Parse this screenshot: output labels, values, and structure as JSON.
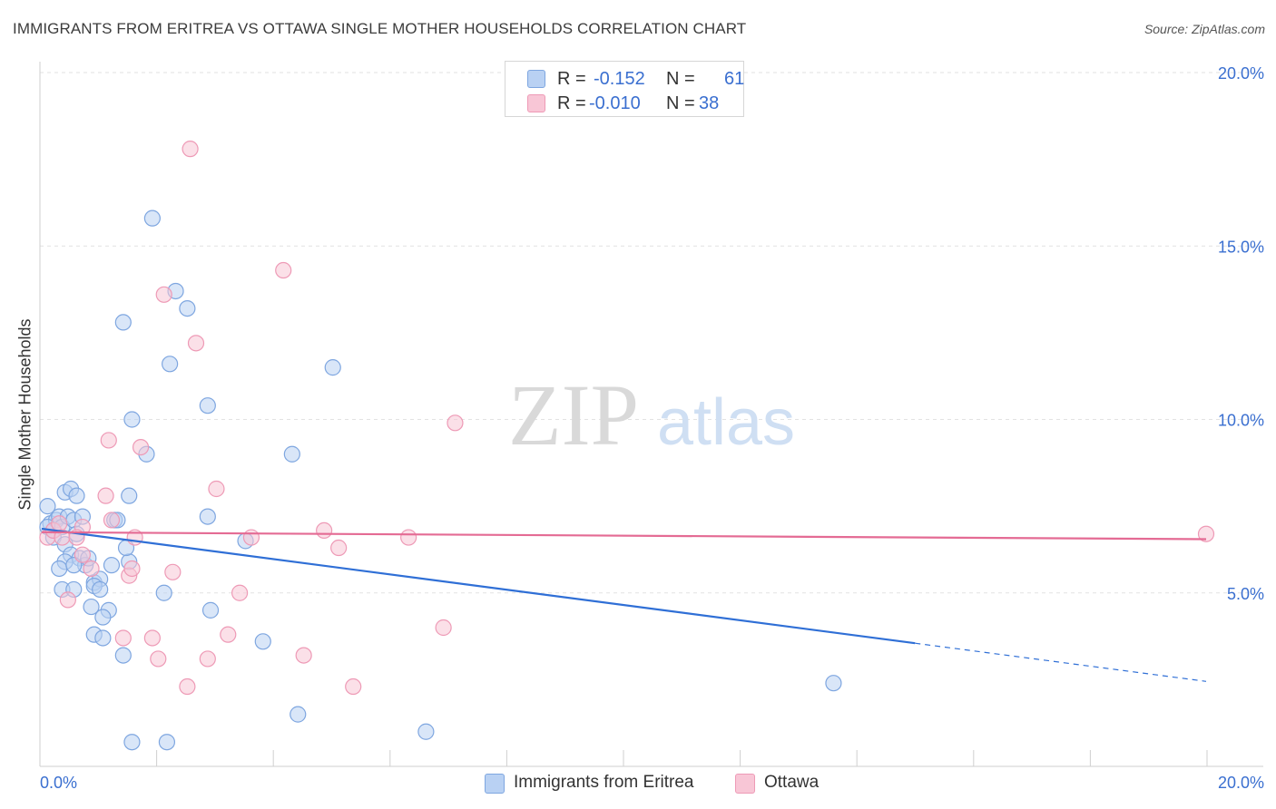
{
  "header": {
    "title": "IMMIGRANTS FROM ERITREA VS OTTAWA SINGLE MOTHER HOUSEHOLDS CORRELATION CHART",
    "source": "Source: ZipAtlas.com"
  },
  "watermark": {
    "zip": "ZIP",
    "atlas": "atlas"
  },
  "legend_top": {
    "rows": [
      {
        "r_label": "R =",
        "r_value": "-0.152",
        "n_label": "N =",
        "n_value": "61"
      },
      {
        "r_label": "R =",
        "r_value": "-0.010",
        "n_label": "N =",
        "n_value": "38"
      }
    ]
  },
  "colors": {
    "series1_fill": "#b9d1f3",
    "series1_stroke": "#7ea6e0",
    "series1_line": "#2f6fd6",
    "series2_fill": "#f8c6d6",
    "series2_stroke": "#ee9ab6",
    "series2_line": "#e46b94",
    "axis_label": "#3a6fd0",
    "grid": "#e2e2e2"
  },
  "chart_data": {
    "type": "scatter",
    "title": "IMMIGRANTS FROM ERITREA VS OTTAWA SINGLE MOTHER HOUSEHOLDS CORRELATION CHART",
    "xlabel": "",
    "ylabel": "Single Mother Households",
    "xlim": [
      0,
      20
    ],
    "ylim": [
      0,
      20
    ],
    "x_tick_labels": [
      "0.0%",
      "20.0%"
    ],
    "y_tick_labels": [
      "5.0%",
      "10.0%",
      "15.0%",
      "20.0%"
    ],
    "y_ticks": [
      5,
      10,
      15,
      20
    ],
    "grid": true,
    "legend_position": "bottom",
    "series": [
      {
        "name": "Immigrants from Eritrea",
        "points": [
          [
            0.1,
            7.5
          ],
          [
            0.15,
            7.0
          ],
          [
            0.2,
            6.8
          ],
          [
            0.25,
            7.1
          ],
          [
            0.3,
            7.2
          ],
          [
            0.1,
            6.9
          ],
          [
            0.2,
            6.6
          ],
          [
            0.35,
            6.9
          ],
          [
            0.4,
            7.9
          ],
          [
            0.5,
            8.0
          ],
          [
            0.6,
            7.8
          ],
          [
            0.45,
            7.2
          ],
          [
            0.55,
            7.1
          ],
          [
            0.7,
            7.2
          ],
          [
            0.6,
            6.7
          ],
          [
            0.4,
            6.4
          ],
          [
            0.5,
            6.1
          ],
          [
            0.65,
            6.0
          ],
          [
            0.75,
            5.8
          ],
          [
            0.4,
            5.9
          ],
          [
            0.3,
            5.7
          ],
          [
            0.55,
            5.8
          ],
          [
            0.9,
            5.3
          ],
          [
            1.0,
            5.4
          ],
          [
            0.35,
            5.1
          ],
          [
            0.55,
            5.1
          ],
          [
            0.9,
            5.2
          ],
          [
            1.0,
            5.1
          ],
          [
            0.85,
            4.6
          ],
          [
            1.15,
            4.5
          ],
          [
            1.05,
            4.3
          ],
          [
            0.9,
            3.8
          ],
          [
            1.05,
            3.7
          ],
          [
            1.2,
            5.8
          ],
          [
            1.25,
            7.1
          ],
          [
            1.5,
            5.9
          ],
          [
            1.5,
            7.8
          ],
          [
            1.45,
            6.3
          ],
          [
            1.4,
            3.2
          ],
          [
            1.4,
            12.8
          ],
          [
            1.55,
            10.0
          ],
          [
            1.8,
            9.0
          ],
          [
            1.9,
            15.8
          ],
          [
            2.1,
            5.0
          ],
          [
            2.2,
            11.6
          ],
          [
            2.3,
            13.7
          ],
          [
            2.5,
            13.2
          ],
          [
            2.85,
            10.4
          ],
          [
            2.85,
            7.2
          ],
          [
            2.9,
            4.5
          ],
          [
            3.5,
            6.5
          ],
          [
            3.8,
            3.6
          ],
          [
            4.3,
            9.0
          ],
          [
            4.4,
            1.5
          ],
          [
            5.0,
            11.5
          ],
          [
            6.6,
            1.0
          ],
          [
            1.55,
            0.7
          ],
          [
            2.15,
            0.7
          ],
          [
            13.6,
            2.4
          ],
          [
            1.3,
            7.1
          ],
          [
            0.8,
            6.0
          ]
        ]
      },
      {
        "name": "Ottawa",
        "points": [
          [
            0.1,
            6.6
          ],
          [
            0.2,
            6.8
          ],
          [
            0.3,
            7.0
          ],
          [
            0.35,
            6.6
          ],
          [
            0.45,
            4.8
          ],
          [
            0.7,
            6.9
          ],
          [
            0.7,
            6.1
          ],
          [
            0.85,
            5.7
          ],
          [
            1.1,
            7.8
          ],
          [
            1.15,
            9.4
          ],
          [
            1.2,
            7.1
          ],
          [
            1.4,
            3.7
          ],
          [
            1.5,
            5.5
          ],
          [
            1.55,
            5.7
          ],
          [
            1.6,
            6.6
          ],
          [
            1.7,
            9.2
          ],
          [
            1.9,
            3.7
          ],
          [
            2.0,
            3.1
          ],
          [
            2.1,
            13.6
          ],
          [
            2.25,
            5.6
          ],
          [
            2.5,
            2.3
          ],
          [
            2.55,
            17.8
          ],
          [
            2.65,
            12.2
          ],
          [
            2.85,
            3.1
          ],
          [
            3.0,
            8.0
          ],
          [
            3.2,
            3.8
          ],
          [
            3.4,
            5.0
          ],
          [
            3.6,
            6.6
          ],
          [
            4.15,
            14.3
          ],
          [
            4.5,
            3.2
          ],
          [
            4.85,
            6.8
          ],
          [
            5.1,
            6.3
          ],
          [
            5.35,
            2.3
          ],
          [
            6.3,
            6.6
          ],
          [
            6.9,
            4.0
          ],
          [
            7.1,
            9.9
          ],
          [
            20.0,
            6.7
          ],
          [
            0.6,
            6.6
          ]
        ]
      }
    ],
    "trend_lines": [
      {
        "series": "Immigrants from Eritrea",
        "x": [
          0,
          15.0
        ],
        "y": [
          6.85,
          3.55
        ],
        "dashed_x": [
          15.0,
          20.0
        ],
        "dashed_y": [
          3.55,
          2.45
        ]
      },
      {
        "series": "Ottawa",
        "x": [
          0,
          20.0
        ],
        "y": [
          6.75,
          6.55
        ]
      }
    ]
  },
  "bottom_legend": {
    "items": [
      "Immigrants from Eritrea",
      "Ottawa"
    ]
  }
}
